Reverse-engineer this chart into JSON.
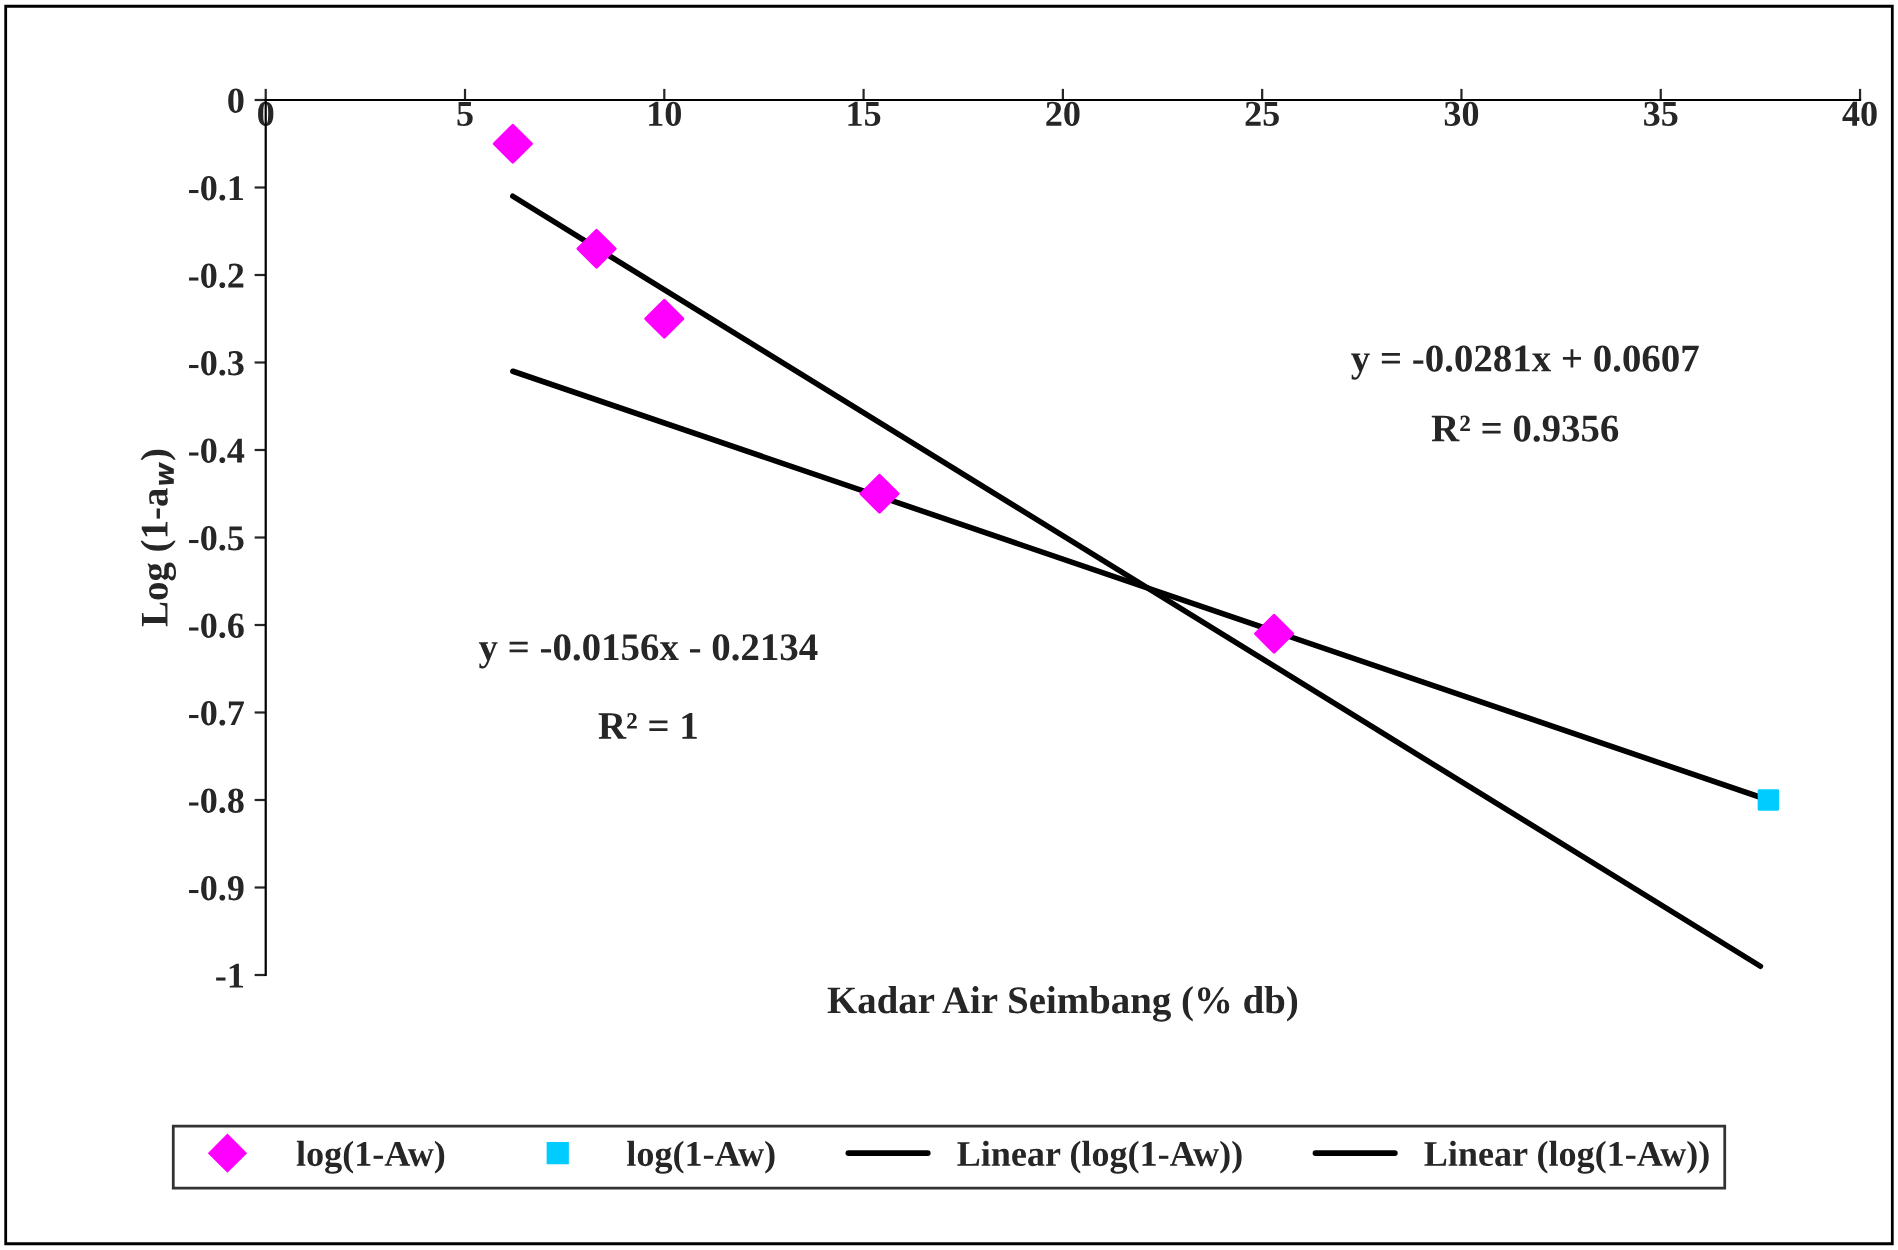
{
  "chart_data": {
    "type": "scatter",
    "xlabel": "Kadar Air Seimbang (% db)",
    "ylabel": "Log (1-a$_{w}$)",
    "xlim": [
      0,
      40
    ],
    "xticks": [
      0,
      5,
      10,
      15,
      20,
      25,
      30,
      35,
      40
    ],
    "ylim": [
      -1,
      0
    ],
    "yticks": [
      0,
      -0.1,
      -0.2,
      -0.3,
      -0.4,
      -0.5,
      -0.6,
      -0.7,
      -0.8,
      -0.9,
      -1
    ],
    "grid": false,
    "legend": "bottom",
    "series": [
      {
        "name": "log(1-Aw)",
        "type": "scatter",
        "marker": "diamond",
        "color": "#ff00ff",
        "x": [
          6.2,
          8.3,
          10.0,
          15.4,
          25.3
        ],
        "values": [
          -0.05,
          -0.17,
          -0.25,
          -0.45,
          -0.61
        ]
      },
      {
        "name": "log(1-Aw)",
        "type": "scatter",
        "marker": "square",
        "color": "#00ccff",
        "x": [
          37.7
        ],
        "values": [
          -0.8
        ]
      },
      {
        "name": "Linear (log(1-Aw))",
        "type": "line",
        "color": "#000000",
        "x": [
          6.2,
          37.5
        ],
        "values": [
          -0.11,
          -0.99
        ]
      },
      {
        "name": "Linear (log(1-Aw))",
        "type": "line",
        "color": "#000000",
        "x": [
          6.2,
          37.7
        ],
        "values": [
          -0.31,
          -0.8
        ]
      }
    ],
    "annotations": [
      "y = -0.0281x + 0.0607",
      "R² = 0.9356",
      "y = -0.0156x - 0.2134",
      "R² = 1"
    ]
  }
}
